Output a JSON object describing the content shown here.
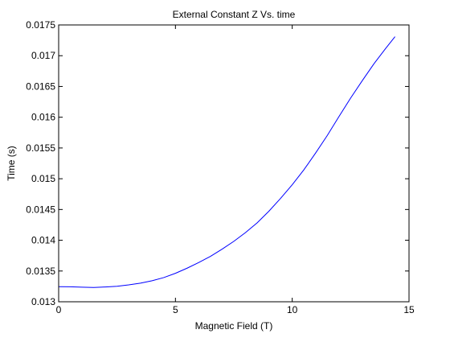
{
  "chart_data": {
    "type": "line",
    "title": "External Constant Z Vs. time",
    "xlabel": "Magnetic Field (T)",
    "ylabel": "Time (s)",
    "xlim": [
      0,
      15
    ],
    "ylim": [
      0.013,
      0.0175
    ],
    "x_ticks": [
      0,
      5,
      10,
      15
    ],
    "x_tick_labels": [
      "0",
      "5",
      "10",
      "15"
    ],
    "y_ticks": [
      0.013,
      0.0135,
      0.014,
      0.0145,
      0.015,
      0.0155,
      0.016,
      0.0165,
      0.017,
      0.0175
    ],
    "y_tick_labels": [
      "0.013",
      "0.0135",
      "0.014",
      "0.0145",
      "0.015",
      "0.0155",
      "0.016",
      "0.0165",
      "0.017",
      "0.0175"
    ],
    "grid": false,
    "legend": "none",
    "series_color": "#0000ff",
    "series": [
      {
        "x": [
          0,
          0.5,
          1.0,
          1.5,
          2.0,
          2.5,
          3.0,
          3.5,
          4.0,
          4.5,
          5.0,
          5.5,
          6.0,
          6.5,
          7.0,
          7.5,
          8.0,
          8.5,
          9.0,
          9.5,
          10.0,
          10.5,
          11.0,
          11.5,
          12.0,
          12.5,
          13.0,
          13.5,
          14.0,
          14.4
        ],
        "y": [
          0.013245,
          0.013244,
          0.013237,
          0.013232,
          0.013241,
          0.013252,
          0.013275,
          0.013303,
          0.013342,
          0.013393,
          0.013463,
          0.013546,
          0.013639,
          0.013738,
          0.013856,
          0.013983,
          0.014125,
          0.014284,
          0.014472,
          0.01468,
          0.014903,
          0.015146,
          0.015418,
          0.015703,
          0.016011,
          0.016311,
          0.016595,
          0.01687,
          0.017118,
          0.01731
        ]
      }
    ]
  }
}
